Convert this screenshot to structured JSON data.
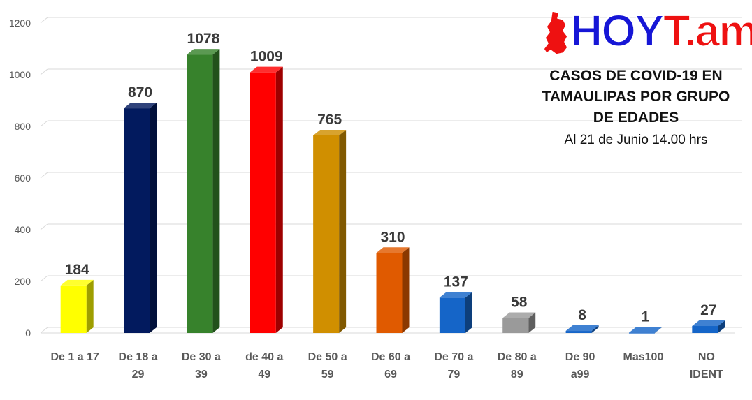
{
  "brand": {
    "logo_part1": "HOY",
    "logo_part2": "T.am",
    "colors": {
      "blue": "#1616d6",
      "red": "#ee1111"
    },
    "icon": "tamaulipas-map-icon"
  },
  "chart_data": {
    "type": "bar",
    "title_lines": [
      "CASOS DE COVID-19 EN",
      "TAMAULIPAS POR GRUPO",
      "DE EDADES"
    ],
    "subtitle": "Al 21 de Junio 14.00 hrs",
    "xlabel": "",
    "ylabel": "",
    "ylim": [
      0,
      1200
    ],
    "yticks": [
      "0",
      "200",
      "400",
      "600",
      "800",
      "1000",
      "1200"
    ],
    "grid": true,
    "legend": "none",
    "categories": [
      [
        "De 1 a 17"
      ],
      [
        "De 18 a",
        "29"
      ],
      [
        "De 30 a",
        "39"
      ],
      [
        "de 40 a",
        "49"
      ],
      [
        "De 50 a",
        "59"
      ],
      [
        "De 60 a",
        "69"
      ],
      [
        "De 70 a",
        "79"
      ],
      [
        "De 80 a",
        "89"
      ],
      [
        "De 90",
        "a99"
      ],
      [
        "Mas100"
      ],
      [
        "NO",
        "IDENT"
      ]
    ],
    "values": [
      184,
      870,
      1078,
      1009,
      765,
      310,
      137,
      58,
      8,
      1,
      27
    ],
    "data_labels": [
      "184",
      "870",
      "1078",
      "1009",
      "765",
      "310",
      "137",
      "58",
      "8",
      "1",
      "27"
    ],
    "colors": [
      "#ffff00",
      "#021a5e",
      "#37822c",
      "#ff0000",
      "#d08f00",
      "#e05a00",
      "#1565c8",
      "#9a9a9a",
      "#1565c8",
      "#1565c8",
      "#1565c8"
    ]
  }
}
